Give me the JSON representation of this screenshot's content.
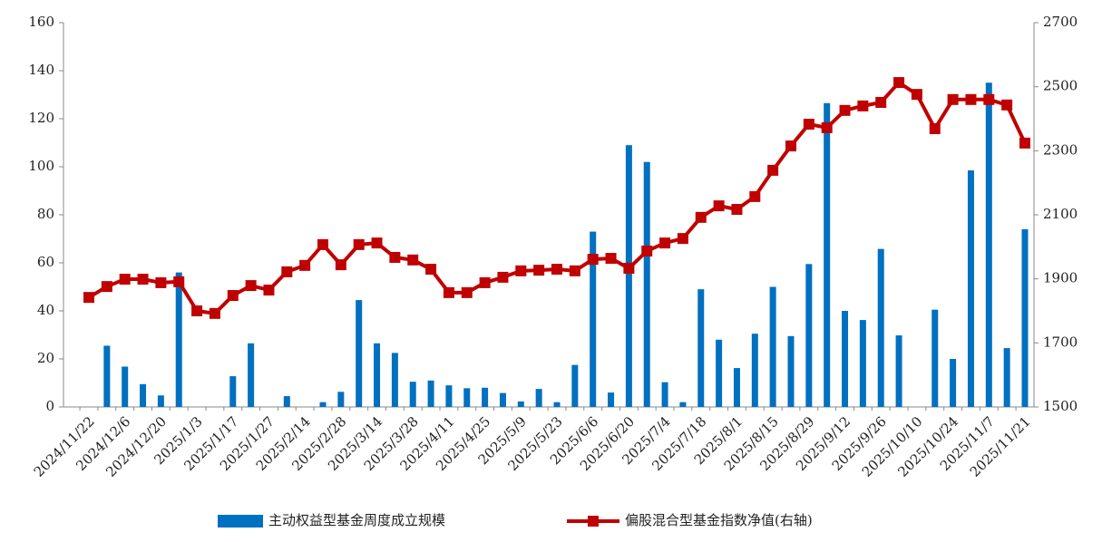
{
  "chart_data": {
    "type": "bar_line",
    "categories": [
      "2024/11/22",
      null,
      "2024/12/6",
      null,
      "2024/12/20",
      null,
      "2025/1/3",
      null,
      "2025/1/17",
      null,
      "2025/1/27",
      null,
      "2025/2/14",
      null,
      "2025/2/28",
      null,
      "2025/3/14",
      null,
      "2025/3/28",
      null,
      "2025/4/11",
      null,
      "2025/4/25",
      null,
      "2025/5/9",
      null,
      "2025/5/23",
      null,
      "2025/6/6",
      null,
      "2025/6/20",
      null,
      "2025/7/4",
      null,
      "2025/7/18",
      null,
      "2025/8/1",
      null,
      "2025/8/15",
      null,
      "2025/8/29",
      null,
      "2025/9/12",
      null,
      "2025/9/26",
      null,
      "2025/10/10",
      null,
      "2025/10/24",
      null,
      "2025/11/7",
      null,
      "2025/11/21"
    ],
    "series": [
      {
        "name": "主动权益型基金周度成立规模",
        "color": "#0070c0",
        "kind": "bar",
        "axis": "y",
        "values": [
          0,
          25.5,
          16.8,
          9.5,
          4.8,
          56,
          0,
          0,
          12.8,
          26.5,
          0,
          4.5,
          0,
          2,
          6.3,
          44.5,
          26.5,
          22.5,
          10.5,
          11,
          9,
          7.8,
          8,
          5.8,
          2.3,
          7.5,
          2,
          17.5,
          73,
          6,
          109,
          102,
          10.3,
          2,
          49,
          28,
          16.2,
          30.5,
          50,
          29.5,
          59.5,
          126.5,
          40,
          36.2,
          65.8,
          29.8,
          0,
          40.5,
          20,
          98.5,
          135,
          24.5,
          74
        ]
      },
      {
        "name": "偏股混合型基金指数净值(右轴)",
        "color": "#c00000",
        "kind": "line",
        "axis": "y2",
        "values": [
          1842,
          1876,
          1899,
          1899,
          1888,
          1891,
          1800,
          1792,
          1848,
          1879,
          1865,
          1922,
          1942,
          2007,
          1944,
          2007,
          2012,
          1967,
          1959,
          1930,
          1857,
          1857,
          1888,
          1905,
          1925,
          1927,
          1930,
          1925,
          1961,
          1964,
          1933,
          1987,
          2012,
          2026,
          2092,
          2128,
          2117,
          2157,
          2239,
          2315,
          2383,
          2372,
          2426,
          2440,
          2451,
          2513,
          2476,
          2369,
          2460,
          2460,
          2460,
          2443,
          2324
        ]
      }
    ],
    "ylim": [
      0,
      160
    ],
    "yticks": [
      0,
      20,
      40,
      60,
      80,
      100,
      120,
      140,
      160
    ],
    "y2lim": [
      1500,
      2700
    ],
    "y2ticks": [
      1500,
      1700,
      1900,
      2100,
      2300,
      2500,
      2700
    ]
  }
}
